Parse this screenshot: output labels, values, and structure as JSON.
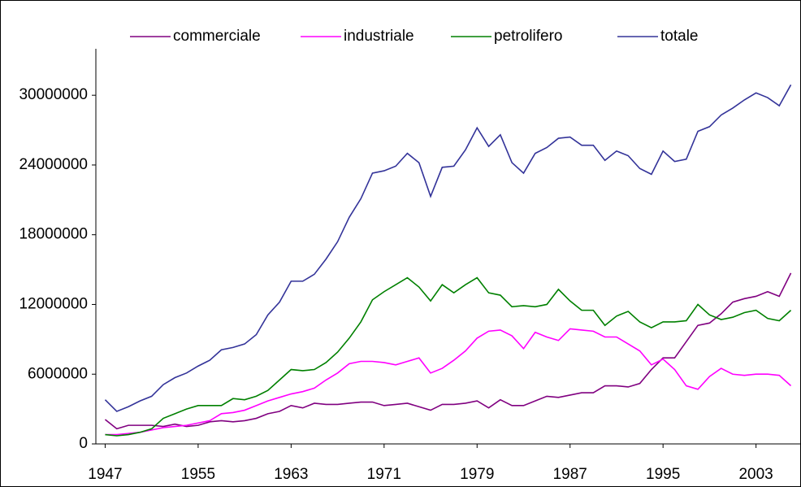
{
  "chart_data": {
    "type": "line",
    "x": [
      1947,
      1948,
      1949,
      1950,
      1951,
      1952,
      1953,
      1954,
      1955,
      1956,
      1957,
      1958,
      1959,
      1960,
      1961,
      1962,
      1963,
      1964,
      1965,
      1966,
      1967,
      1968,
      1969,
      1970,
      1971,
      1972,
      1973,
      1974,
      1975,
      1976,
      1977,
      1978,
      1979,
      1980,
      1981,
      1982,
      1983,
      1984,
      1985,
      1986,
      1987,
      1988,
      1989,
      1990,
      1991,
      1992,
      1993,
      1994,
      1995,
      1996,
      1997,
      1998,
      1999,
      2000,
      2001,
      2002,
      2003,
      2004,
      2005,
      2006
    ],
    "xlim": [
      1946.2,
      2006.8
    ],
    "xticks": [
      1947,
      1955,
      1963,
      1971,
      1979,
      1987,
      1995,
      2003
    ],
    "ylim": [
      0,
      34000000
    ],
    "yticks": [
      0,
      6000000,
      12000000,
      18000000,
      24000000,
      30000000
    ],
    "series": [
      {
        "name": "commerciale",
        "color": "#800080",
        "values": [
          2100000,
          1300000,
          1600000,
          1600000,
          1600000,
          1500000,
          1700000,
          1500000,
          1600000,
          1900000,
          2000000,
          1900000,
          2000000,
          2200000,
          2600000,
          2800000,
          3300000,
          3100000,
          3500000,
          3400000,
          3400000,
          3500000,
          3600000,
          3600000,
          3300000,
          3400000,
          3500000,
          3200000,
          2900000,
          3400000,
          3400000,
          3500000,
          3700000,
          3100000,
          3800000,
          3300000,
          3300000,
          3700000,
          4100000,
          4000000,
          4200000,
          4400000,
          4400000,
          5000000,
          5000000,
          4900000,
          5200000,
          6400000,
          7400000,
          7400000,
          8800000,
          10200000,
          10400000,
          11200000,
          12200000,
          12500000,
          12700000,
          13100000,
          12700000,
          14700000
        ]
      },
      {
        "name": "industriale",
        "color": "#ff00ff",
        "values": [
          800000,
          800000,
          900000,
          1000000,
          1200000,
          1400000,
          1500000,
          1600000,
          1800000,
          2000000,
          2600000,
          2700000,
          2900000,
          3300000,
          3700000,
          4000000,
          4300000,
          4500000,
          4800000,
          5500000,
          6100000,
          6900000,
          7100000,
          7100000,
          7000000,
          6800000,
          7100000,
          7400000,
          6100000,
          6500000,
          7200000,
          8000000,
          9100000,
          9700000,
          9800000,
          9300000,
          8200000,
          9600000,
          9200000,
          8900000,
          9900000,
          9800000,
          9700000,
          9200000,
          9200000,
          8600000,
          8000000,
          6800000,
          7300000,
          6400000,
          5000000,
          4700000,
          5800000,
          6500000,
          6000000,
          5900000,
          6000000,
          6000000,
          5900000,
          5000000
        ]
      },
      {
        "name": "petrolifero",
        "color": "#008000",
        "values": [
          800000,
          700000,
          800000,
          1000000,
          1300000,
          2200000,
          2600000,
          3000000,
          3300000,
          3300000,
          3300000,
          3900000,
          3800000,
          4100000,
          4600000,
          5500000,
          6400000,
          6300000,
          6400000,
          7000000,
          7900000,
          9100000,
          10500000,
          12400000,
          13100000,
          13700000,
          14300000,
          13500000,
          12300000,
          13700000,
          13000000,
          13700000,
          14300000,
          13000000,
          12800000,
          11800000,
          11900000,
          11800000,
          12000000,
          13300000,
          12300000,
          11500000,
          11500000,
          10200000,
          11000000,
          11400000,
          10500000,
          10000000,
          10500000,
          10500000,
          10600000,
          12000000,
          11100000,
          10700000,
          10900000,
          11300000,
          11500000,
          10800000,
          10600000,
          11500000
        ]
      },
      {
        "name": "totale",
        "color": "#333399",
        "values": [
          3800000,
          2800000,
          3200000,
          3700000,
          4100000,
          5100000,
          5700000,
          6100000,
          6700000,
          7200000,
          8100000,
          8300000,
          8600000,
          9400000,
          11100000,
          12200000,
          14000000,
          14000000,
          14600000,
          15900000,
          17400000,
          19500000,
          21100000,
          23300000,
          23500000,
          23900000,
          25000000,
          24200000,
          21300000,
          23800000,
          23900000,
          25300000,
          27200000,
          25600000,
          26600000,
          24200000,
          23300000,
          25000000,
          25500000,
          26300000,
          26400000,
          25700000,
          25700000,
          24400000,
          25200000,
          24800000,
          23700000,
          23200000,
          25200000,
          24300000,
          24500000,
          26900000,
          27300000,
          28300000,
          28900000,
          29600000,
          30200000,
          29800000,
          29100000,
          30900000
        ]
      }
    ]
  }
}
